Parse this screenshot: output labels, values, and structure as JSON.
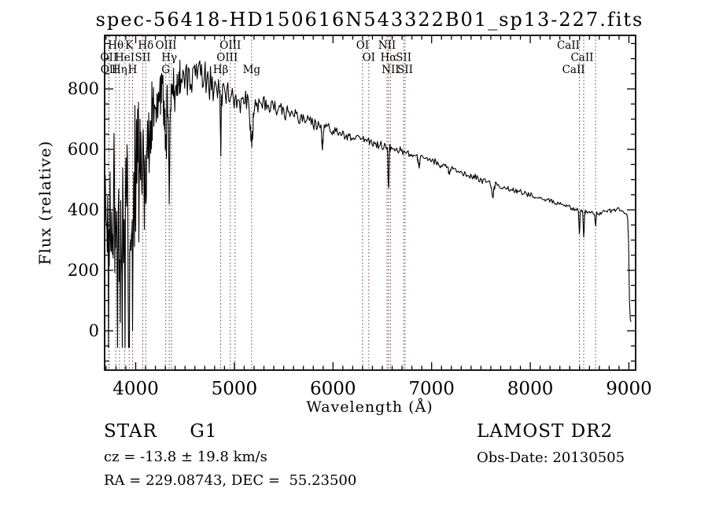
{
  "page": {
    "background": "#ffffff"
  },
  "chart_data": {
    "type": "line",
    "title": "spec-56418-HD150616N543322B01_sp13-227.fits",
    "xlabel": "Wavelength (Å)",
    "ylabel": "Flux (relative)",
    "x_range": [
      3685,
      9068
    ],
    "y_range": [
      -130,
      977
    ],
    "x_major_ticks": [
      4000,
      5000,
      6000,
      7000,
      8000,
      9000
    ],
    "x_minor_step": 100,
    "y_major_ticks": [
      0,
      200,
      400,
      600,
      800
    ],
    "y_minor_step": 50,
    "grid": false,
    "legend": "none",
    "line_color": "#000000",
    "marker_line_color": "#6b3a3a",
    "noise_seed": 20130505,
    "continuum": [
      [
        3688,
        260
      ],
      [
        3710,
        300
      ],
      [
        3740,
        360
      ],
      [
        3780,
        410
      ],
      [
        3820,
        400
      ],
      [
        3860,
        385
      ],
      [
        3900,
        395
      ],
      [
        3940,
        410
      ],
      [
        3970,
        430
      ],
      [
        4000,
        555
      ],
      [
        4040,
        600
      ],
      [
        4080,
        630
      ],
      [
        4120,
        655
      ],
      [
        4160,
        700
      ],
      [
        4200,
        730
      ],
      [
        4240,
        760
      ],
      [
        4280,
        750
      ],
      [
        4320,
        770
      ],
      [
        4360,
        790
      ],
      [
        4400,
        805
      ],
      [
        4450,
        820
      ],
      [
        4500,
        838
      ],
      [
        4560,
        848
      ],
      [
        4620,
        855
      ],
      [
        4680,
        845
      ],
      [
        4740,
        830
      ],
      [
        4800,
        812
      ],
      [
        4860,
        795
      ],
      [
        4920,
        785
      ],
      [
        4980,
        775
      ],
      [
        5040,
        770
      ],
      [
        5100,
        763
      ],
      [
        5160,
        748
      ],
      [
        5220,
        756
      ],
      [
        5300,
        748
      ],
      [
        5400,
        738
      ],
      [
        5500,
        726
      ],
      [
        5600,
        712
      ],
      [
        5700,
        697
      ],
      [
        5800,
        686
      ],
      [
        5900,
        675
      ],
      [
        6000,
        661
      ],
      [
        6100,
        651
      ],
      [
        6200,
        642
      ],
      [
        6300,
        633
      ],
      [
        6400,
        623
      ],
      [
        6500,
        613
      ],
      [
        6600,
        603
      ],
      [
        6700,
        593
      ],
      [
        6800,
        583
      ],
      [
        6900,
        573
      ],
      [
        7000,
        562
      ],
      [
        7100,
        548
      ],
      [
        7200,
        536
      ],
      [
        7300,
        522
      ],
      [
        7400,
        511
      ],
      [
        7500,
        500
      ],
      [
        7600,
        489
      ],
      [
        7700,
        478
      ],
      [
        7800,
        468
      ],
      [
        7900,
        458
      ],
      [
        8000,
        448
      ],
      [
        8100,
        438
      ],
      [
        8200,
        428
      ],
      [
        8300,
        419
      ],
      [
        8400,
        409
      ],
      [
        8500,
        399
      ],
      [
        8600,
        391
      ],
      [
        8700,
        388
      ],
      [
        8800,
        397
      ],
      [
        8850,
        403
      ],
      [
        8900,
        399
      ],
      [
        8950,
        393
      ],
      [
        8985,
        386
      ],
      [
        8995,
        330
      ],
      [
        9002,
        180
      ],
      [
        9008,
        45
      ],
      [
        9015,
        33
      ],
      [
        9025,
        31
      ]
    ],
    "noise_envelope": [
      [
        3688,
        300
      ],
      [
        3740,
        290
      ],
      [
        3800,
        270
      ],
      [
        3860,
        255
      ],
      [
        3920,
        245
      ],
      [
        3970,
        215
      ],
      [
        4010,
        170
      ],
      [
        4060,
        145
      ],
      [
        4110,
        128
      ],
      [
        4160,
        112
      ],
      [
        4210,
        100
      ],
      [
        4300,
        86
      ],
      [
        4400,
        76
      ],
      [
        4500,
        68
      ],
      [
        4600,
        60
      ],
      [
        4700,
        55
      ],
      [
        4800,
        50
      ],
      [
        4900,
        45
      ],
      [
        5000,
        40
      ],
      [
        5100,
        35
      ],
      [
        5300,
        28
      ],
      [
        5500,
        23
      ],
      [
        5800,
        18
      ],
      [
        6100,
        15
      ],
      [
        6500,
        13
      ],
      [
        7000,
        11
      ],
      [
        7500,
        10
      ],
      [
        8000,
        9
      ],
      [
        8500,
        8
      ],
      [
        8800,
        8
      ],
      [
        8985,
        7
      ],
      [
        9000,
        5
      ],
      [
        9025,
        4
      ]
    ],
    "features": [
      {
        "name": "CaII-K",
        "wavelength": 3934,
        "depth": 330,
        "sigma": 8
      },
      {
        "name": "CaII-H",
        "wavelength": 3968,
        "depth": 300,
        "sigma": 8
      },
      {
        "name": "H-delta",
        "wavelength": 4102,
        "depth": 260,
        "sigma": 7
      },
      {
        "name": "G-band",
        "wavelength": 4305,
        "depth": 180,
        "sigma": 7
      },
      {
        "name": "H-gamma",
        "wavelength": 4340,
        "depth": 270,
        "sigma": 6
      },
      {
        "name": "H-beta",
        "wavelength": 4861,
        "depth": 195,
        "sigma": 5
      },
      {
        "name": "Mg-b",
        "wavelength": 5175,
        "depth": 125,
        "sigma": 14
      },
      {
        "name": "Na-D",
        "wavelength": 5893,
        "depth": 70,
        "sigma": 6
      },
      {
        "name": "H-alpha",
        "wavelength": 6563,
        "depth": 135,
        "sigma": 5
      },
      {
        "name": "telluric-B",
        "wavelength": 6870,
        "depth": 35,
        "sigma": 8
      },
      {
        "name": "telluric-water",
        "wavelength": 7180,
        "depth": 18,
        "sigma": 8
      },
      {
        "name": "telluric-A",
        "wavelength": 7620,
        "depth": 45,
        "sigma": 9
      },
      {
        "name": "CaII-8498",
        "wavelength": 8498,
        "depth": 72,
        "sigma": 5
      },
      {
        "name": "CaII-8542",
        "wavelength": 8542,
        "depth": 85,
        "sigma": 5
      },
      {
        "name": "CaII-8662",
        "wavelength": 8662,
        "depth": 45,
        "sigma": 5
      }
    ],
    "spectral_lines": [
      {
        "wavelength": 3727,
        "label": "OII",
        "row": 1
      },
      {
        "wavelength": 3730,
        "label": "OII",
        "row": 2
      },
      {
        "wavelength": 3798,
        "label": "Hθ",
        "row": 0
      },
      {
        "wavelength": 3835,
        "label": "Hη",
        "row": 2
      },
      {
        "wavelength": 3889,
        "label": "HeI",
        "row": 1
      },
      {
        "wavelength": 3934,
        "label": "K",
        "row": 0
      },
      {
        "wavelength": 3968,
        "label": "H",
        "row": 2
      },
      {
        "wavelength": 4072,
        "label": "SII",
        "row": 1
      },
      {
        "wavelength": 4102,
        "label": "Hδ",
        "row": 0
      },
      {
        "wavelength": 4305,
        "label": "G",
        "row": 2
      },
      {
        "wavelength": 4340,
        "label": "Hγ",
        "row": 1
      },
      {
        "wavelength": 4363,
        "label": "OIII",
        "row": 0,
        "dx": -7
      },
      {
        "wavelength": 4861,
        "label": "Hβ",
        "row": 2
      },
      {
        "wavelength": 4959,
        "label": "OIII",
        "row": 0
      },
      {
        "wavelength": 5007,
        "label": "OIII",
        "row": 1,
        "dx": -10
      },
      {
        "wavelength": 5175,
        "label": "Mg",
        "row": 2
      },
      {
        "wavelength": 6300,
        "label": "OI",
        "row": 0
      },
      {
        "wavelength": 6363,
        "label": "OI",
        "row": 1
      },
      {
        "wavelength": 6548,
        "label": "NII",
        "row": 0
      },
      {
        "wavelength": 6563,
        "label": "Hα",
        "row": 1
      },
      {
        "wavelength": 6583,
        "label": "NII",
        "row": 2
      },
      {
        "wavelength": 6716,
        "label": "SII",
        "row": 1
      },
      {
        "wavelength": 6731,
        "label": "SII",
        "row": 2
      },
      {
        "wavelength": 8498,
        "label": "CaII",
        "row": 0,
        "dx": -14
      },
      {
        "wavelength": 8542,
        "label": "CaII",
        "row": 1,
        "dx": -2
      },
      {
        "wavelength": 8662,
        "label": "CaII",
        "row": 2,
        "dx": -28
      }
    ]
  },
  "footer": {
    "classification": "STAR     G1",
    "cz": "cz = -13.8 ± 19.8 km/s",
    "radec": "RA = 229.08743, DEC =  55.23500",
    "survey": "LAMOST DR2",
    "obs_date": "Obs-Date: 20130505"
  }
}
